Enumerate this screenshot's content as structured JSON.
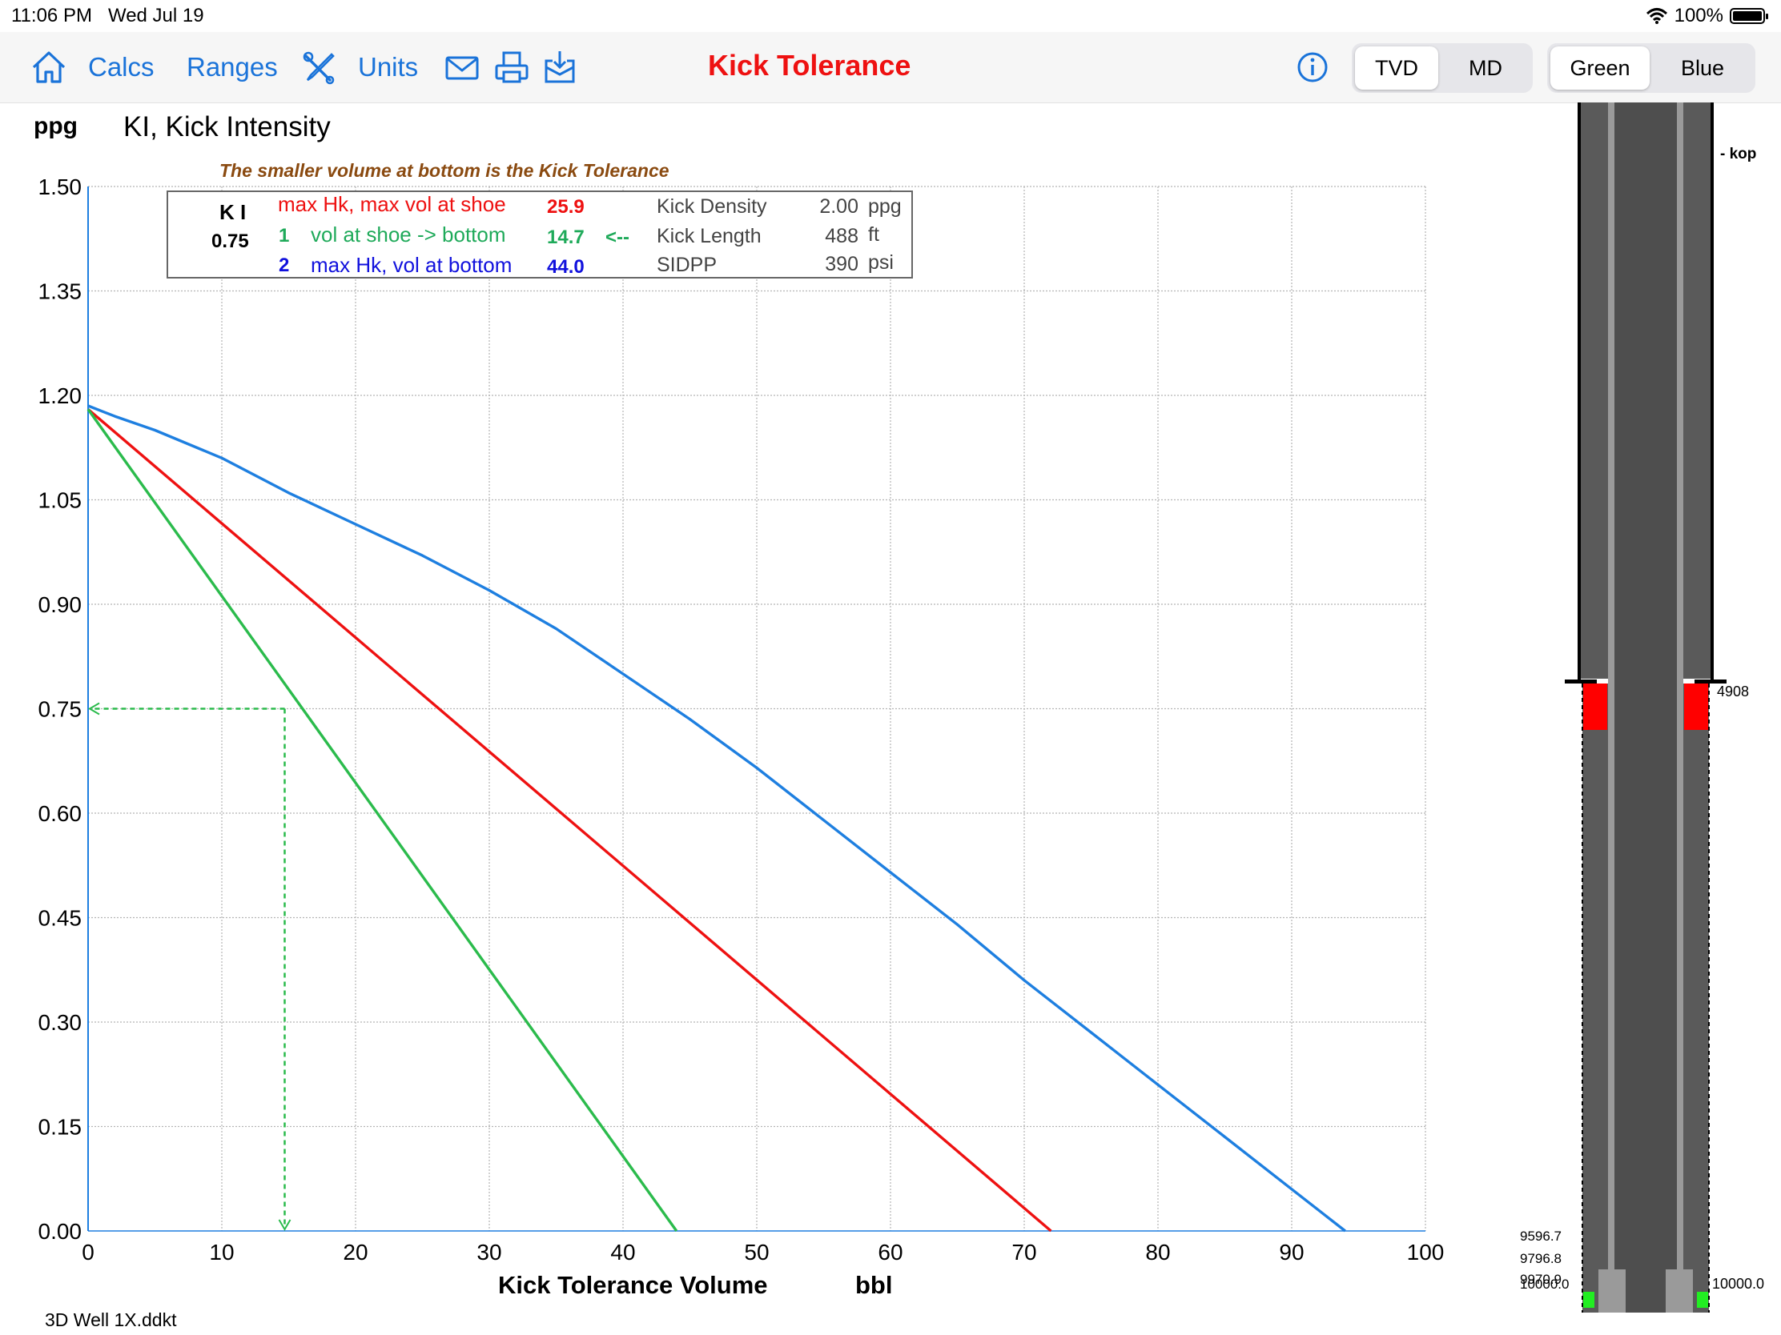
{
  "status": {
    "time": "11:06 PM",
    "date": "Wed Jul 19",
    "battery": "100%"
  },
  "toolbar": {
    "home_icon": "home-icon",
    "calcs": "Calcs",
    "ranges": "Ranges",
    "units": "Units",
    "title": "Kick Tolerance",
    "depth_mode": {
      "options": [
        "TVD",
        "MD"
      ],
      "selected": "TVD"
    },
    "color_mode": {
      "options": [
        "Green",
        "Blue"
      ],
      "selected": "Green"
    }
  },
  "chart_header": {
    "unit": "ppg",
    "title": "KI, Kick Intensity",
    "hint": "The smaller volume at bottom is the Kick Tolerance"
  },
  "legend": {
    "ki_label": "K I",
    "ki_value": "0.75",
    "rows": [
      {
        "num": "",
        "text": "max Hk, max vol at shoe",
        "value": "25.9",
        "color": "#ee1111"
      },
      {
        "num": "1",
        "text": "vol at shoe -> bottom",
        "value": "14.7",
        "arrow": "<--",
        "color": "#1faa5a"
      },
      {
        "num": "2",
        "text": "max Hk, vol at bottom",
        "value": "44.0",
        "color": "#1111dd"
      }
    ],
    "params": [
      {
        "label": "Kick Density",
        "value": "2.00",
        "unit": "ppg"
      },
      {
        "label": "Kick Length",
        "value": "488",
        "unit": "ft"
      },
      {
        "label": "SIDPP",
        "value": "390",
        "unit": "psi"
      }
    ]
  },
  "x_axis": {
    "title": "Kick Tolerance Volume",
    "unit": "bbl"
  },
  "chart_data": {
    "type": "line",
    "xlabel": "Kick Tolerance Volume",
    "ylabel": "KI, Kick Intensity",
    "xlim": [
      0,
      100
    ],
    "ylim": [
      0,
      1.5
    ],
    "x_ticks": [
      "0",
      "10",
      "20",
      "30",
      "40",
      "50",
      "60",
      "70",
      "80",
      "90",
      "100"
    ],
    "y_ticks": [
      "0.00",
      "0.15",
      "0.30",
      "0.45",
      "0.60",
      "0.75",
      "0.90",
      "1.05",
      "1.20",
      "1.35",
      "1.50"
    ],
    "grid": true,
    "series": [
      {
        "color": "#1e7fe0",
        "x": [
          0,
          2,
          5,
          10,
          15,
          20,
          25,
          30,
          35,
          40,
          45,
          50,
          55,
          60,
          65,
          70,
          75,
          80,
          85,
          90,
          94
        ],
        "y": [
          1.185,
          1.17,
          1.15,
          1.11,
          1.06,
          1.015,
          0.97,
          0.92,
          0.865,
          0.8,
          0.735,
          0.665,
          0.59,
          0.515,
          0.44,
          0.36,
          0.285,
          0.21,
          0.135,
          0.06,
          0.0
        ]
      },
      {
        "color": "#ee1111",
        "x": [
          0,
          72
        ],
        "y": [
          1.18,
          0.0
        ]
      },
      {
        "color": "#2bbb4c",
        "x": [
          0,
          44
        ],
        "y": [
          1.18,
          0.0
        ]
      }
    ],
    "marker": {
      "x": 14.7,
      "y": 0.75,
      "color": "#2bbb4c"
    }
  },
  "well": {
    "kop_label": "- kop",
    "shoe_depth": "4908",
    "bottom_depths": [
      "9596.7",
      "9796.8",
      "9970.9",
      "10000.0"
    ],
    "bottom_right": "10000.0"
  },
  "footer": {
    "filename": "3D Well 1X.ddkt"
  }
}
